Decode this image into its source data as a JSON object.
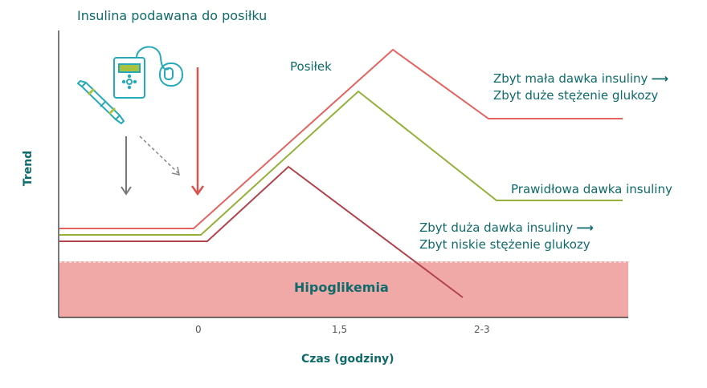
{
  "diagram": {
    "title": "Insulina podawana do posiłku",
    "meal_label": "Posiłek",
    "y_axis_label": "Trend",
    "x_axis_label": "Czas (godziny)",
    "x_ticks": [
      "0",
      "1,5",
      "2-3"
    ],
    "zone_label": "Hipoglikemia",
    "too_low_line1": "Zbyt mała dawka insuliny",
    "too_low_line2": "Zbyt duże stężenie glukozy",
    "correct_label": "Prawidłowa dawka insuliny",
    "too_high_line1": "Zbyt duża dawka insuliny",
    "too_high_line2": "Zbyt niskie stężenie glukozy",
    "arrow_glyph": "⟶"
  },
  "colors": {
    "teal": "#0f6b6b",
    "too_low_line": "#e3645f",
    "correct_line": "#93b13a",
    "too_high_line": "#b0434c",
    "hypo_zone": "#f0a9a7",
    "red_arrow": "#d9534f",
    "gray_arrow": "#777777",
    "device_outline": "#26a9b8",
    "device_accent": "#a9c23f"
  },
  "icons": [
    "insulin-pump-icon",
    "insulin-pen-icon"
  ]
}
